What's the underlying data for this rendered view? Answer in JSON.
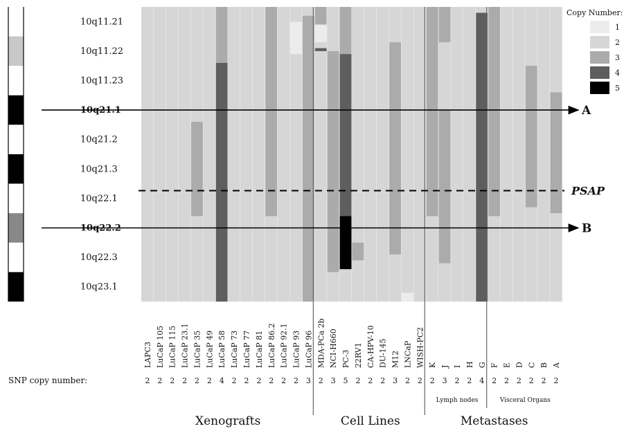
{
  "chart_data": {
    "type": "heatmap",
    "bands": [
      "10q11.21",
      "10q11.22",
      "10q11.23",
      "10q21.1",
      "10q21.2",
      "10q21.3",
      "10q22.1",
      "10q22.2",
      "10q22.3",
      "10q23.1"
    ],
    "bold_bands": [
      "10q21.1",
      "10q22.2"
    ],
    "ideogram": [
      {
        "shade": "white"
      },
      {
        "shade": "light"
      },
      {
        "shade": "white"
      },
      {
        "shade": "black"
      },
      {
        "shade": "white"
      },
      {
        "shade": "black"
      },
      {
        "shade": "white"
      },
      {
        "shade": "gray"
      },
      {
        "shade": "white"
      },
      {
        "shade": "black"
      }
    ],
    "legend": {
      "title": "Copy Number:",
      "levels": [
        1,
        2,
        3,
        4,
        5
      ],
      "colors": [
        "#ececec",
        "#d6d6d6",
        "#ababab",
        "#5e5e5e",
        "#000000"
      ]
    },
    "baseline_level": 2,
    "samples": [
      {
        "name": "LAPC3",
        "snp": "2",
        "group": 0,
        "segments": []
      },
      {
        "name": "LuCaP 105",
        "snp": "2",
        "group": 0,
        "segments": []
      },
      {
        "name": "LuCaP 115",
        "snp": "2",
        "group": 0,
        "segments": []
      },
      {
        "name": "LuCaP 23.1",
        "snp": "2",
        "group": 0,
        "segments": []
      },
      {
        "name": "LuCaP 35",
        "snp": "2",
        "group": 0,
        "segments": [
          {
            "from": 3.9,
            "to": 7.1,
            "level": 3
          }
        ]
      },
      {
        "name": "LuCaP 49",
        "snp": "2",
        "group": 0,
        "segments": []
      },
      {
        "name": "LuCaP 58",
        "snp": "4",
        "group": 0,
        "segments": [
          {
            "from": 0,
            "to": 1.9,
            "level": 3
          },
          {
            "from": 1.9,
            "to": 10,
            "level": 4
          }
        ]
      },
      {
        "name": "LuCaP 73",
        "snp": "2",
        "group": 0,
        "segments": []
      },
      {
        "name": "LuCaP 77",
        "snp": "2",
        "group": 0,
        "segments": []
      },
      {
        "name": "LuCaP 81",
        "snp": "2",
        "group": 0,
        "segments": []
      },
      {
        "name": "LuCaP 86.2",
        "snp": "2",
        "group": 0,
        "segments": [
          {
            "from": 0,
            "to": 7.1,
            "level": 3
          }
        ]
      },
      {
        "name": "LuCaP 92.1",
        "snp": "2",
        "group": 0,
        "segments": []
      },
      {
        "name": "LuCaP 93",
        "snp": "2",
        "group": 0,
        "segments": [
          {
            "from": 0.5,
            "to": 1.6,
            "level": 1
          }
        ]
      },
      {
        "name": "LuCaP 96",
        "snp": "3",
        "group": 0,
        "segments": [
          {
            "from": 0.3,
            "to": 10,
            "level": 3
          }
        ]
      },
      {
        "name": "MDA-PCa 2b",
        "snp": "2",
        "group": 1,
        "segments": [
          {
            "from": 0,
            "to": 0.6,
            "level": 3
          },
          {
            "from": 0.6,
            "to": 1.2,
            "level": 1
          },
          {
            "from": 1.4,
            "to": 1.5,
            "level": 4
          }
        ]
      },
      {
        "name": "NCI-H660",
        "snp": "3",
        "group": 1,
        "segments": [
          {
            "from": 1.5,
            "to": 9.0,
            "level": 3
          }
        ]
      },
      {
        "name": "PC-3",
        "snp": "5",
        "group": 1,
        "segments": [
          {
            "from": 0,
            "to": 1.6,
            "level": 3
          },
          {
            "from": 1.6,
            "to": 7.1,
            "level": 4
          },
          {
            "from": 7.1,
            "to": 8.9,
            "level": 5
          }
        ]
      },
      {
        "name": "22RV1",
        "snp": "2",
        "group": 1,
        "segments": [
          {
            "from": 8.0,
            "to": 8.6,
            "level": 3
          }
        ]
      },
      {
        "name": "CA-HPV-10",
        "snp": "2",
        "group": 1,
        "segments": []
      },
      {
        "name": "DU-145",
        "snp": "2",
        "group": 1,
        "segments": []
      },
      {
        "name": "M12",
        "snp": "3",
        "group": 1,
        "segments": [
          {
            "from": 1.2,
            "to": 8.4,
            "level": 3
          }
        ]
      },
      {
        "name": "LNCaP",
        "snp": "2",
        "group": 1,
        "segments": [
          {
            "from": 9.7,
            "to": 10,
            "level": 1
          }
        ]
      },
      {
        "name": "WISH-PC2",
        "snp": "2",
        "group": 1,
        "segments": []
      },
      {
        "name": "K",
        "snp": "2",
        "group": 2,
        "segments": [
          {
            "from": 0,
            "to": 7.1,
            "level": 3
          }
        ]
      },
      {
        "name": "J",
        "snp": "3",
        "group": 2,
        "segments": [
          {
            "from": 0,
            "to": 1.2,
            "level": 3
          },
          {
            "from": 3.5,
            "to": 8.7,
            "level": 3
          }
        ]
      },
      {
        "name": "I",
        "snp": "2",
        "group": 2,
        "segments": []
      },
      {
        "name": "H",
        "snp": "2",
        "group": 2,
        "segments": []
      },
      {
        "name": "G",
        "snp": "4",
        "group": 2,
        "segments": [
          {
            "from": 0.2,
            "to": 10,
            "level": 4
          }
        ]
      },
      {
        "name": "F",
        "snp": "2",
        "group": 3,
        "segments": [
          {
            "from": 0,
            "to": 7.1,
            "level": 3
          }
        ]
      },
      {
        "name": "E",
        "snp": "2",
        "group": 3,
        "segments": []
      },
      {
        "name": "D",
        "snp": "2",
        "group": 3,
        "segments": []
      },
      {
        "name": "C",
        "snp": "2",
        "group": 3,
        "segments": [
          {
            "from": 2.0,
            "to": 6.8,
            "level": 3
          }
        ]
      },
      {
        "name": "B",
        "snp": "2",
        "group": 3,
        "segments": []
      },
      {
        "name": "A",
        "snp": "2",
        "group": 3,
        "segments": [
          {
            "from": 2.9,
            "to": 7.0,
            "level": 3
          }
        ]
      }
    ],
    "groups": [
      "Xenografts",
      "Cell Lines",
      "Metastases"
    ],
    "subgroups": [
      "Lymph nodes",
      "Visceral Organs"
    ],
    "snp_label": "SNP copy number:",
    "arrows": [
      {
        "label": "A",
        "band": "10q21.1"
      },
      {
        "label": "B",
        "band": "10q22.2"
      }
    ],
    "dashed_line": {
      "label": "PSAP",
      "band": "10q22.1"
    }
  }
}
